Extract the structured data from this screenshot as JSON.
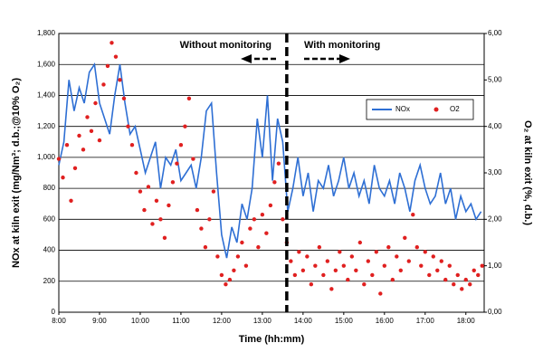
{
  "chart_data": {
    "type": "line_scatter",
    "x_label": "Time (hh:mm)",
    "y_label": "NOx at kiln exit (mg/Nm³; d.b.;@10% O₂)",
    "y2_label": "O₂ at kiln exit (%, d.b.)",
    "annotations": [
      {
        "text": "Without monitoring"
      },
      {
        "text": "With monitoring"
      }
    ],
    "divider_x": 13.6,
    "xlim": [
      8,
      18.45
    ],
    "xticks": [
      {
        "value": 8,
        "label": "8:00"
      },
      {
        "value": 9,
        "label": "9:00"
      },
      {
        "value": 10,
        "label": "10:00"
      },
      {
        "value": 11,
        "label": "11:00"
      },
      {
        "value": 12,
        "label": "12:00"
      },
      {
        "value": 13,
        "label": "13:00"
      },
      {
        "value": 14,
        "label": "14:00"
      },
      {
        "value": 15,
        "label": "15:00"
      },
      {
        "value": 16,
        "label": "16:00"
      },
      {
        "value": 17,
        "label": "17:00"
      },
      {
        "value": 18,
        "label": "18:00"
      }
    ],
    "ylim": [
      0,
      1800
    ],
    "yticks": [
      0,
      200,
      400,
      600,
      800,
      {
        "value": 1000,
        "label": "1,000"
      },
      {
        "value": 1200,
        "label": "1,200"
      },
      {
        "value": 1400,
        "label": "1,400"
      },
      {
        "value": 1600,
        "label": "1,600"
      },
      {
        "value": 1800,
        "label": "1,800"
      }
    ],
    "y2lim": [
      0,
      6
    ],
    "y2ticks": [
      {
        "value": 0,
        "label": "0,00"
      },
      {
        "value": 1,
        "label": "1,00"
      },
      {
        "value": 2,
        "label": "2,00"
      },
      {
        "value": 3,
        "label": "3,00"
      },
      {
        "value": 4,
        "label": "4,00"
      },
      {
        "value": 5,
        "label": "5,00"
      },
      {
        "value": 6,
        "label": "6,00"
      }
    ],
    "grid": true,
    "legend": "upper right",
    "series": [
      {
        "name": "NOx",
        "kind": "line",
        "color": "#2e6fd4",
        "x": [
          8,
          8.125,
          8.25,
          8.375,
          8.5,
          8.625,
          8.75,
          8.875,
          9,
          9.125,
          9.25,
          9.375,
          9.5,
          9.625,
          9.75,
          9.875,
          10,
          10.125,
          10.25,
          10.375,
          10.5,
          10.625,
          10.75,
          10.875,
          11,
          11.125,
          11.25,
          11.375,
          11.5,
          11.625,
          11.75,
          11.875,
          12,
          12.125,
          12.25,
          12.375,
          12.5,
          12.625,
          12.75,
          12.875,
          13,
          13.125,
          13.25,
          13.375,
          13.5,
          13.625,
          13.75,
          13.875,
          14,
          14.125,
          14.25,
          14.375,
          14.5,
          14.625,
          14.75,
          14.875,
          15,
          15.125,
          15.25,
          15.375,
          15.5,
          15.625,
          15.75,
          15.875,
          16,
          16.125,
          16.25,
          16.375,
          16.5,
          16.625,
          16.75,
          16.875,
          17,
          17.125,
          17.25,
          17.375,
          17.5,
          17.625,
          17.75,
          17.875,
          18,
          18.125,
          18.25,
          18.375
        ],
        "values": [
          950,
          1100,
          1500,
          1300,
          1450,
          1350,
          1550,
          1600,
          1350,
          1250,
          1150,
          1400,
          1600,
          1350,
          1150,
          1200,
          1050,
          900,
          1000,
          1100,
          800,
          1000,
          950,
          1050,
          850,
          900,
          950,
          800,
          1000,
          1300,
          1350,
          900,
          500,
          350,
          550,
          450,
          700,
          600,
          800,
          1250,
          1000,
          1400,
          850,
          1250,
          1100,
          650,
          800,
          1000,
          750,
          900,
          650,
          850,
          800,
          950,
          750,
          850,
          1000,
          800,
          900,
          750,
          850,
          700,
          950,
          800,
          750,
          850,
          700,
          900,
          800,
          650,
          850,
          950,
          800,
          700,
          750,
          900,
          700,
          800,
          600,
          750,
          650,
          700,
          600,
          650
        ]
      },
      {
        "name": "O2",
        "kind": "scatter",
        "axis": "y2",
        "color": "#e02020",
        "x": [
          8,
          8.1,
          8.2,
          8.3,
          8.4,
          8.5,
          8.6,
          8.7,
          8.8,
          8.9,
          9,
          9.1,
          9.2,
          9.3,
          9.4,
          9.5,
          9.6,
          9.7,
          9.8,
          9.9,
          10,
          10.1,
          10.2,
          10.3,
          10.4,
          10.5,
          10.6,
          10.7,
          10.8,
          10.9,
          11,
          11.1,
          11.2,
          11.3,
          11.4,
          11.5,
          11.6,
          11.7,
          11.8,
          11.9,
          12,
          12.1,
          12.2,
          12.3,
          12.4,
          12.5,
          12.6,
          12.7,
          12.8,
          12.9,
          13,
          13.1,
          13.2,
          13.3,
          13.4,
          13.5,
          13.6,
          13.7,
          13.8,
          13.9,
          14,
          14.1,
          14.2,
          14.3,
          14.4,
          14.5,
          14.6,
          14.7,
          14.8,
          14.9,
          15,
          15.1,
          15.2,
          15.3,
          15.4,
          15.5,
          15.6,
          15.7,
          15.8,
          15.9,
          16,
          16.1,
          16.2,
          16.3,
          16.4,
          16.5,
          16.6,
          16.7,
          16.8,
          16.9,
          17,
          17.1,
          17.2,
          17.3,
          17.4,
          17.5,
          17.6,
          17.7,
          17.8,
          17.9,
          18,
          18.1,
          18.2,
          18.3,
          18.4
        ],
        "values": [
          3.3,
          2.9,
          3.6,
          2.4,
          3.1,
          3.8,
          3.5,
          4.2,
          3.9,
          4.5,
          3.7,
          4.9,
          5.3,
          5.8,
          5.5,
          5.0,
          4.6,
          4.0,
          3.6,
          3.0,
          2.6,
          2.2,
          2.7,
          1.9,
          2.4,
          2.0,
          1.6,
          2.3,
          2.8,
          3.2,
          3.6,
          4.0,
          4.6,
          3.3,
          2.2,
          1.8,
          1.4,
          2.0,
          2.6,
          1.2,
          0.8,
          0.6,
          0.7,
          0.9,
          1.2,
          1.5,
          1.0,
          1.8,
          2.0,
          1.4,
          2.1,
          1.7,
          2.3,
          2.8,
          3.2,
          2.0,
          1.5,
          1.1,
          0.8,
          1.3,
          0.9,
          1.2,
          0.6,
          1.0,
          1.4,
          0.8,
          1.1,
          0.5,
          0.9,
          1.3,
          1.0,
          0.7,
          1.2,
          0.9,
          1.5,
          0.6,
          1.1,
          0.8,
          1.3,
          0.4,
          1.0,
          1.4,
          0.7,
          1.2,
          0.9,
          1.6,
          1.1,
          2.1,
          1.4,
          1.0,
          1.3,
          0.8,
          1.2,
          0.9,
          1.1,
          0.7,
          1.0,
          0.6,
          0.8,
          0.5,
          0.7,
          0.6,
          0.9,
          0.8,
          1.0
        ]
      }
    ]
  }
}
